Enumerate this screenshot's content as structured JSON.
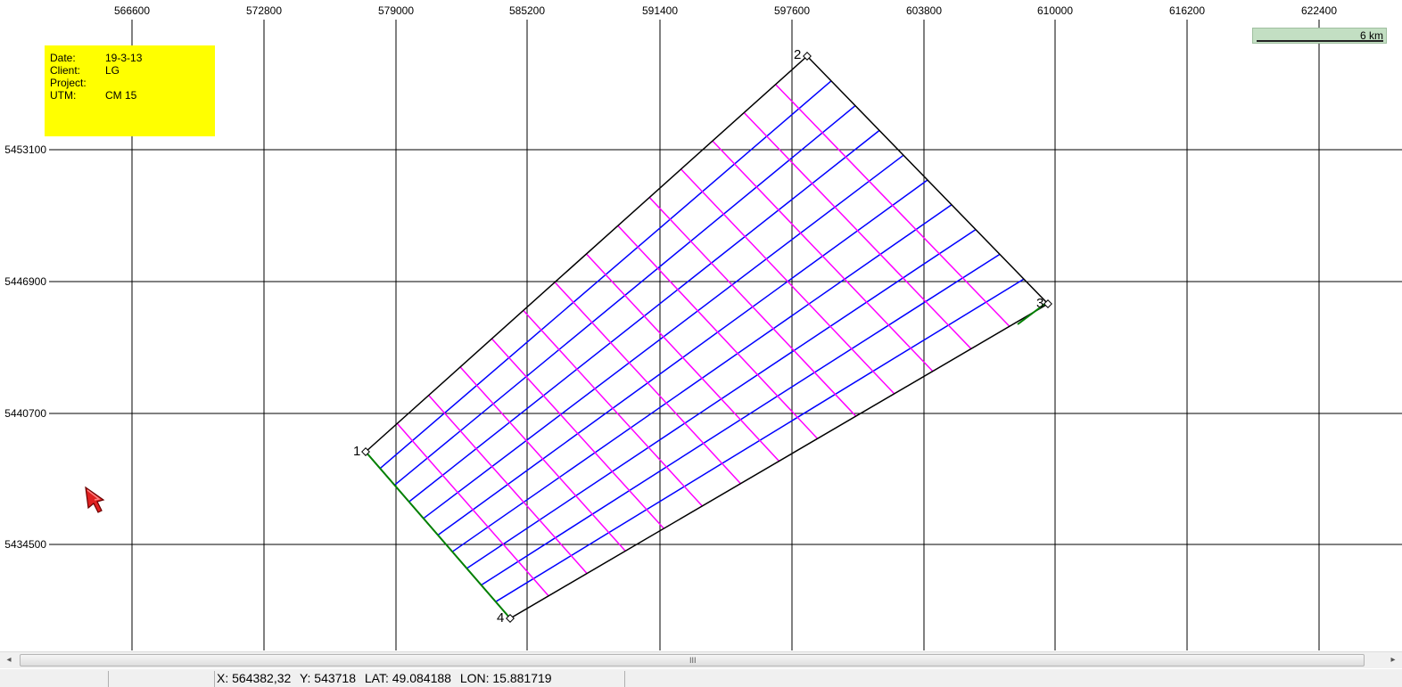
{
  "map": {
    "x_ticks": [
      "566600",
      "572800",
      "579000",
      "585200",
      "591400",
      "597600",
      "603800",
      "610000",
      "616200",
      "622400"
    ],
    "y_ticks": [
      "5453100",
      "5446900",
      "5440700",
      "5434500"
    ],
    "vertices": [
      "1",
      "2",
      "3",
      "4"
    ],
    "colors": {
      "boundary": "#000000",
      "blue_lines": "#0000ff",
      "magenta_lines": "#ff00ff",
      "green_edge": "#008000",
      "grid": "#000000"
    }
  },
  "info_box": {
    "date_key": "Date:",
    "date_val": "19-3-13",
    "client_key": "Client:",
    "client_val": "LG",
    "project_key": "Project:",
    "project_val": "",
    "utm_key": "UTM:",
    "utm_val": "CM 15",
    "background": "#ffff00"
  },
  "scale_bar": {
    "label": "6 km"
  },
  "scrollbar": {
    "left_arrow": "◂",
    "right_arrow": "▸",
    "grip": "III"
  },
  "status": {
    "x": "X: 564382,32",
    "y": "Y: 543718",
    "lat": "LAT:  49.084188",
    "lon": "LON:  15.881719"
  },
  "cursor": {
    "icon": "pointer-arrow-icon",
    "color": "#e02020"
  }
}
